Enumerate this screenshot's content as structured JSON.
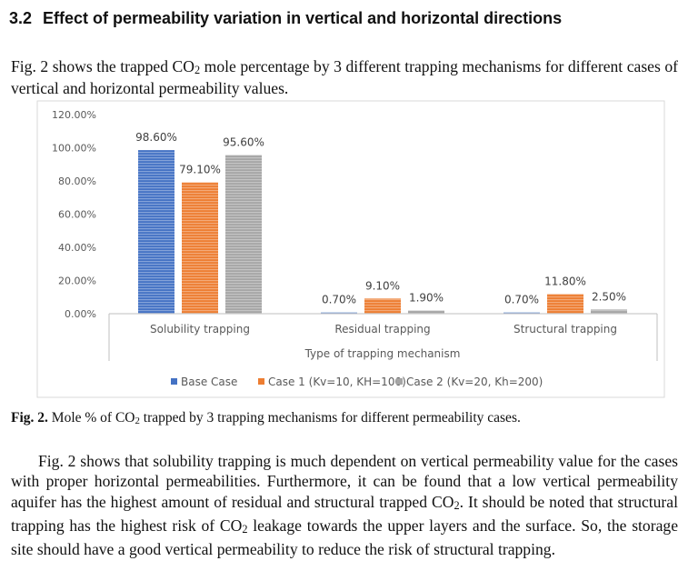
{
  "section": {
    "number": "3.2",
    "title": "Effect of permeability variation in vertical and horizontal directions"
  },
  "intro": {
    "pre": "Fig. 2 shows the trapped CO",
    "sub": "2",
    "post": " mole percentage by 3 different trapping mechanisms for different cases of vertical and horizontal permeability values."
  },
  "caption": {
    "label": "Fig. 2.",
    "pre": " Mole % of CO",
    "sub": "2",
    "post": " trapped by 3 trapping mechanisms for different permeability cases."
  },
  "body": {
    "s1": "Fig. 2 shows that solubility trapping is much dependent on vertical permeability value for the cases with proper horizontal permeabilities. Furthermore, it can be found that a low vertical permeability aquifer has the highest amount of residual and structural trapped CO",
    "sub1": "2",
    "s2": ". It should be noted that structural trapping has the highest risk of CO",
    "sub2": "2",
    "s3": " leakage towards the upper layers and the surface. So, the storage site should have a good vertical permeability to reduce the risk of structural trapping."
  },
  "chart_data": {
    "type": "bar",
    "categories": [
      "Solubility trapping",
      "Residual trapping",
      "Structural trapping"
    ],
    "series": [
      {
        "name": "Base Case",
        "color": "#4472c4",
        "values": [
          98.6,
          0.7,
          0.7
        ],
        "labels": [
          "98.60%",
          "0.70%",
          "0.70%"
        ]
      },
      {
        "name": "Case 1 (Kv=10, KH=100)",
        "color": "#ed7d31",
        "values": [
          79.1,
          9.1,
          11.8
        ],
        "labels": [
          "79.10%",
          "9.10%",
          "11.80%"
        ]
      },
      {
        "name": "Case 2 (Kv=20, Kh=200)",
        "color": "#a5a5a5",
        "values": [
          95.6,
          1.9,
          2.5
        ],
        "labels": [
          "95.60%",
          "1.90%",
          "2.50%"
        ]
      }
    ],
    "title": "",
    "xlabel": "Type of trapping mechanism",
    "ylabel": "",
    "ylim": [
      0,
      120
    ],
    "yticks": [
      "0.00%",
      "20.00%",
      "40.00%",
      "60.00%",
      "80.00%",
      "100.00%",
      "120.00%"
    ],
    "grid": false,
    "legend": "bottom"
  }
}
